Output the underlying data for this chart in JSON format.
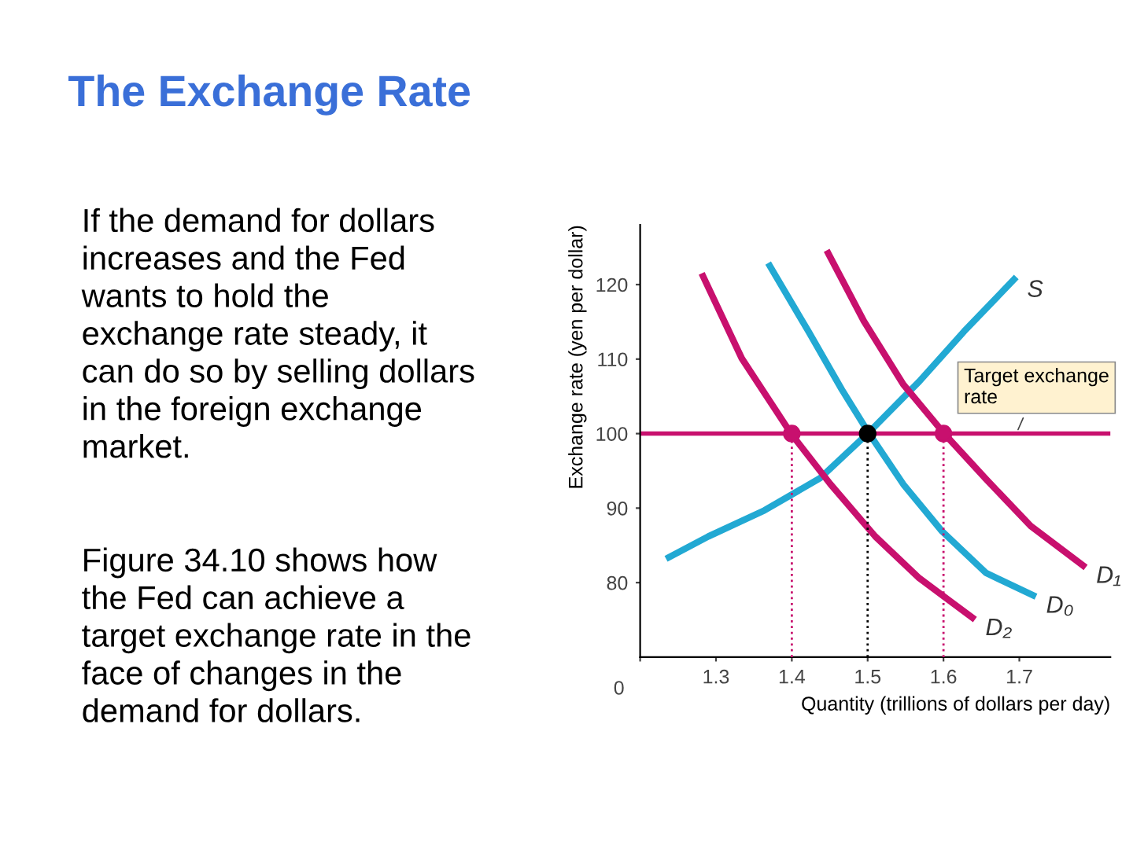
{
  "chart_data": {
    "type": "line",
    "title": "The Exchange Rate",
    "xlabel": "Quantity (trillions of dollars per day)",
    "ylabel": "Exchange rate (yen per dollar)",
    "xlim": [
      1.2,
      1.82
    ],
    "ylim": [
      70,
      128
    ],
    "xticks": [
      {
        "value": 1.2,
        "label": null
      },
      1.3,
      1.4,
      1.5,
      1.6,
      1.7
    ],
    "yticks": [
      80,
      90,
      100,
      110,
      120
    ],
    "grid": false,
    "ref_lines": [
      {
        "axis": "y",
        "value": 100,
        "color": "#c8106e"
      }
    ],
    "annotations": [
      "If the demand for dollars\nincreases and the Fed\nwants to hold the\nexchange rate steady, it\ncan do so by selling dollars\nin the foreign exchange\nmarket.",
      "Figure 34.10 shows how\nthe Fed can achieve a\ntarget exchange rate in the\nface of changes in the\ndemand for dollars.",
      {
        "text": "Target exchange\nrate",
        "x": 1.696,
        "y": 100
      },
      "0"
    ],
    "series": [
      {
        "name": "S",
        "color": "#22a9d3",
        "x": [
          1.238,
          1.29,
          1.364,
          1.437,
          1.5,
          1.568,
          1.627,
          1.693
        ],
        "values": [
          83.4,
          86.2,
          89.7,
          94.0,
          100,
          107.0,
          113.7,
          120.7
        ]
      },
      {
        "name": "D₀",
        "color": "#22a9d3",
        "x": [
          1.371,
          1.422,
          1.466,
          1.502,
          1.547,
          1.598,
          1.656,
          1.718
        ],
        "values": [
          122.5,
          113.7,
          105.9,
          100,
          93.2,
          86.9,
          81.3,
          78.3
        ]
      },
      {
        "name": "D₁",
        "color": "#c8106e",
        "x": [
          1.448,
          1.495,
          1.547,
          1.601,
          1.656,
          1.715,
          1.784
        ],
        "values": [
          124.2,
          115.1,
          106.6,
          100,
          93.9,
          87.6,
          82.3
        ]
      },
      {
        "name": "D₂",
        "color": "#c8106e",
        "x": [
          1.283,
          1.334,
          1.399,
          1.451,
          1.51,
          1.568,
          1.638
        ],
        "values": [
          121.1,
          110.1,
          100,
          93.2,
          86.2,
          80.6,
          75.3
        ]
      },
      {
        "line_style": "dotted",
        "color": "#c8106e",
        "x": [
          1.4,
          1.4
        ],
        "values": [
          70,
          100
        ]
      },
      {
        "line_style": "dotted",
        "color": "#000000",
        "x": [
          1.5,
          1.5
        ],
        "values": [
          70,
          100
        ]
      },
      {
        "line_style": "dotted",
        "color": "#c8106e",
        "x": [
          1.6,
          1.6
        ],
        "values": [
          70,
          100
        ]
      },
      {
        "type": "scatter",
        "colors": [
          "#c8106e",
          "#000000",
          "#c8106e"
        ],
        "x": [
          1.4,
          1.5,
          1.6
        ],
        "values": [
          100,
          100,
          100
        ]
      }
    ]
  }
}
